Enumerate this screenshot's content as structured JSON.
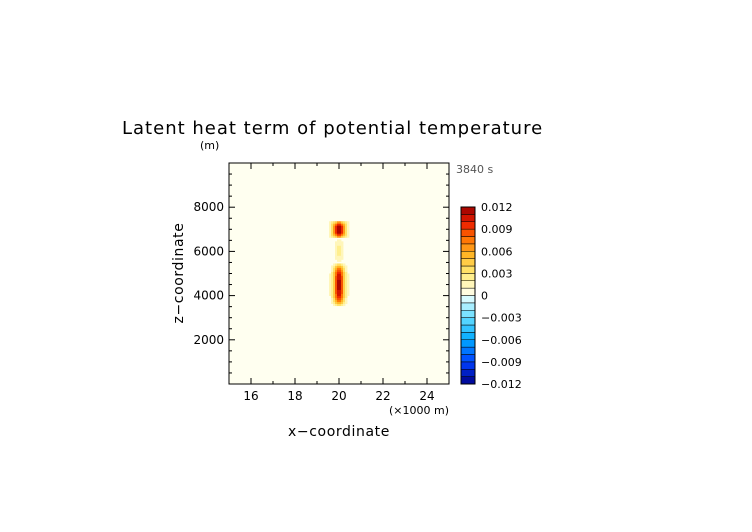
{
  "chart_data": {
    "type": "heatmap",
    "title": "Latent heat term of potential temperature",
    "timestamp": "3840 s",
    "xlabel": "x−coordinate",
    "x_unit": "(×1000 m)",
    "ylabel": "z−coordinate",
    "y_unit": "(m)",
    "xlim": [
      15,
      25
    ],
    "ylim": [
      0,
      10000
    ],
    "x_ticks": [
      16,
      18,
      20,
      22,
      24
    ],
    "y_ticks": [
      2000,
      4000,
      6000,
      8000
    ],
    "x_tick_labels": [
      "16",
      "18",
      "20",
      "22",
      "24"
    ],
    "y_tick_labels": [
      "2000",
      "4000",
      "6000",
      "8000"
    ],
    "colorbar": {
      "range": [
        -0.012,
        0.012
      ],
      "levels": 24,
      "tick_values": [
        0.012,
        0.009,
        0.006,
        0.003,
        0,
        -0.003,
        -0.006,
        -0.009,
        -0.012
      ],
      "tick_labels": [
        "0.012",
        "0.009",
        "0.006",
        "0.003",
        "0",
        "−0.003",
        "−0.006",
        "−0.009",
        "−0.012"
      ]
    },
    "background_value": 0.0005,
    "features": [
      {
        "x": 20.0,
        "z_bottom": 6600,
        "z_top": 7400,
        "half_width": 0.35,
        "peak": 0.0115
      },
      {
        "x": 20.0,
        "z_bottom": 3500,
        "z_top": 5500,
        "half_width": 0.3,
        "peak": 0.011
      },
      {
        "x": 20.0,
        "z_bottom": 5500,
        "z_top": 6600,
        "half_width": 0.2,
        "peak": 0.0018
      }
    ],
    "colors": {
      "background": "#fffff0",
      "positive_max": "#990000",
      "negative_max": "#00008b"
    }
  }
}
